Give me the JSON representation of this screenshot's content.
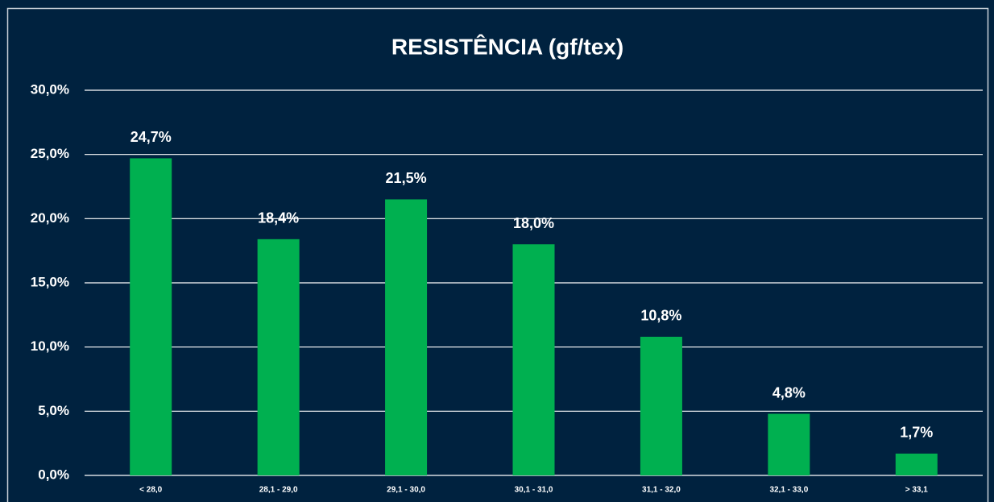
{
  "chart_data": {
    "type": "bar",
    "title": "RESISTÊNCIA (gf/tex)",
    "categories": [
      "< 28,0",
      "28,1 - 29,0",
      "29,1 - 30,0",
      "30,1 - 31,0",
      "31,1 - 32,0",
      "32,1 - 33,0",
      "> 33,1"
    ],
    "values": [
      24.7,
      18.4,
      21.5,
      18.0,
      10.8,
      4.8,
      1.7
    ],
    "value_labels": [
      "24,7%",
      "18,4%",
      "21,5%",
      "18,0%",
      "10,8%",
      "4,8%",
      "1,7%"
    ],
    "color": "#00b050",
    "ylim": [
      0,
      30
    ],
    "yticks": [
      {
        "value": 0,
        "label": "0,0%"
      },
      {
        "value": 5,
        "label": "5,0%"
      },
      {
        "value": 10,
        "label": "10,0%"
      },
      {
        "value": 15,
        "label": "15,0%"
      },
      {
        "value": 20,
        "label": "20,0%"
      },
      {
        "value": 25,
        "label": "25,0%"
      },
      {
        "value": 30,
        "label": "30,0%"
      }
    ],
    "grid": true
  }
}
